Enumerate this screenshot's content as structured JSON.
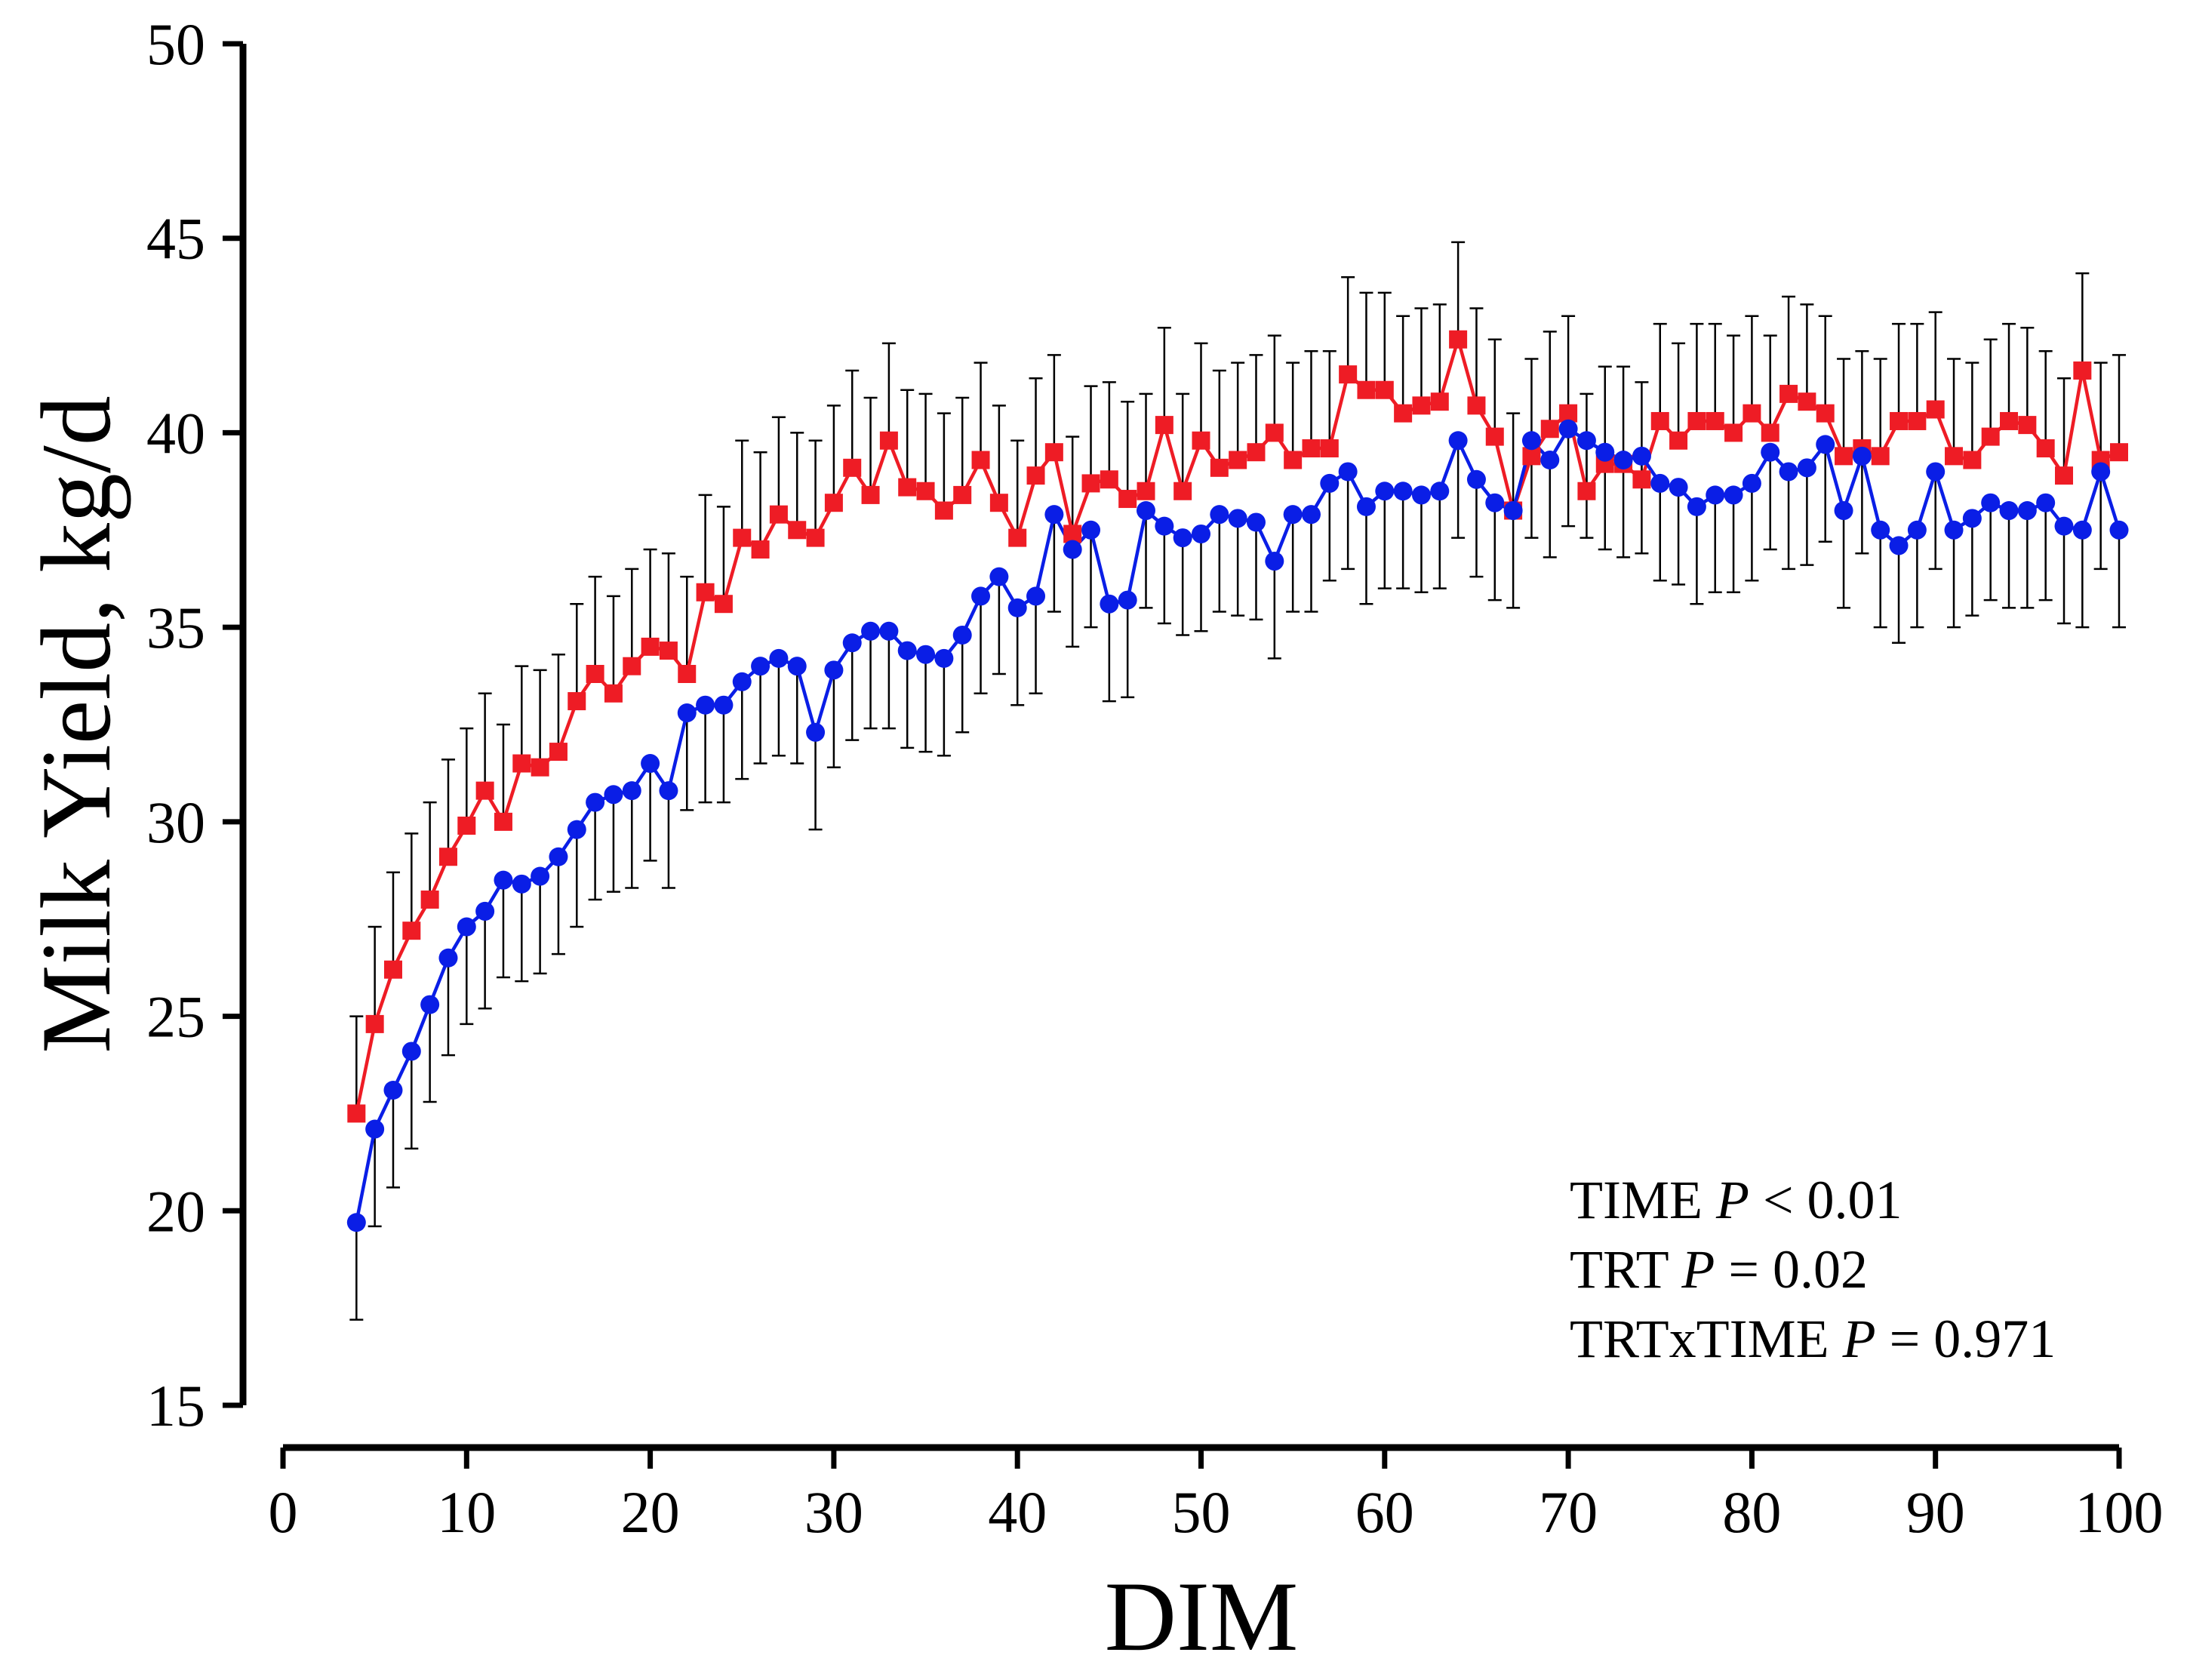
{
  "chart_data": {
    "type": "line",
    "title": "",
    "xlabel": "DIM",
    "ylabel": "Milk Yield, kg/d",
    "xlim": [
      0,
      100
    ],
    "ylim": [
      15,
      50
    ],
    "xticks": [
      "0",
      "10",
      "20",
      "30",
      "40",
      "50",
      "60",
      "70",
      "80",
      "90",
      "100"
    ],
    "yticks": [
      "15",
      "20",
      "25",
      "30",
      "35",
      "40",
      "45",
      "50"
    ],
    "grid": false,
    "x": [
      4,
      5,
      6,
      7,
      8,
      9,
      10,
      11,
      12,
      13,
      14,
      15,
      16,
      17,
      18,
      19,
      20,
      21,
      22,
      23,
      24,
      25,
      26,
      27,
      28,
      29,
      30,
      31,
      32,
      33,
      34,
      35,
      36,
      37,
      38,
      39,
      40,
      41,
      42,
      43,
      44,
      45,
      46,
      47,
      48,
      49,
      50,
      51,
      52,
      53,
      54,
      55,
      56,
      57,
      58,
      59,
      60,
      61,
      62,
      63,
      64,
      65,
      66,
      67,
      68,
      69,
      70,
      71,
      72,
      73,
      74,
      75,
      76,
      77,
      78,
      79,
      80,
      81,
      82,
      83,
      84,
      85,
      86,
      87,
      88,
      89,
      90,
      91,
      92,
      93,
      94,
      95,
      96,
      97,
      98,
      99,
      100
    ],
    "error_bar_length": 2.5,
    "series": [
      {
        "name": "Red (square markers)",
        "color": "#ee1c25",
        "marker": "square",
        "error_direction": "up",
        "values": [
          22.5,
          24.8,
          26.2,
          27.2,
          28.0,
          29.1,
          29.9,
          30.8,
          30.0,
          31.5,
          31.4,
          31.8,
          33.1,
          33.8,
          33.3,
          34.0,
          34.5,
          34.4,
          33.8,
          35.9,
          35.6,
          37.3,
          37.0,
          37.9,
          37.5,
          37.3,
          38.2,
          39.1,
          38.4,
          39.8,
          38.6,
          38.5,
          38.0,
          38.4,
          39.3,
          38.2,
          37.3,
          38.9,
          39.5,
          37.4,
          38.7,
          38.8,
          38.3,
          38.5,
          40.2,
          38.5,
          39.8,
          39.1,
          39.3,
          39.5,
          40.0,
          39.3,
          39.6,
          39.6,
          41.5,
          41.1,
          41.1,
          40.5,
          40.7,
          40.8,
          42.4,
          40.7,
          39.9,
          38.0,
          39.4,
          40.1,
          40.5,
          38.5,
          39.2,
          39.2,
          38.8,
          40.3,
          39.8,
          40.3,
          40.3,
          40.0,
          40.5,
          40.0,
          41.0,
          40.8,
          40.5,
          39.4,
          39.6,
          39.4,
          40.3,
          40.3,
          40.6,
          39.4,
          39.3,
          39.9,
          40.3,
          40.2,
          39.6,
          38.9,
          41.6,
          39.3,
          39.5
        ]
      },
      {
        "name": "Blue (circle markers)",
        "color": "#0a1ee6",
        "marker": "circle",
        "error_direction": "down",
        "values": [
          19.7,
          22.1,
          23.1,
          24.1,
          25.3,
          26.5,
          27.3,
          27.7,
          28.5,
          28.4,
          28.6,
          29.1,
          29.8,
          30.5,
          30.7,
          30.8,
          31.5,
          30.8,
          32.8,
          33.0,
          33.0,
          33.6,
          34.0,
          34.2,
          34.0,
          32.3,
          33.9,
          34.6,
          34.9,
          34.9,
          34.4,
          34.3,
          34.2,
          34.8,
          35.8,
          36.3,
          35.5,
          35.8,
          37.9,
          37.0,
          37.5,
          35.6,
          35.7,
          38.0,
          37.6,
          37.3,
          37.4,
          37.9,
          37.8,
          37.7,
          36.7,
          37.9,
          37.9,
          38.7,
          39.0,
          38.1,
          38.5,
          38.5,
          38.4,
          38.5,
          39.8,
          38.8,
          38.2,
          38.0,
          39.8,
          39.3,
          40.1,
          39.8,
          39.5,
          39.3,
          39.4,
          38.7,
          38.6,
          38.1,
          38.4,
          38.4,
          38.7,
          39.5,
          39.0,
          39.1,
          39.7,
          38.0,
          39.4,
          37.5,
          37.1,
          37.5,
          39.0,
          37.5,
          37.8,
          38.2,
          38.0,
          38.0,
          38.2,
          37.6,
          37.5,
          39.0,
          37.5
        ]
      }
    ],
    "annotations": [
      {
        "prefix": "TIME ",
        "p": "P",
        "suffix": " < 0.01"
      },
      {
        "prefix": "TRT ",
        "p": "P",
        "suffix": " = 0.02"
      },
      {
        "prefix": "TRTxTIME ",
        "p": "P",
        "suffix": " = 0.971"
      }
    ]
  }
}
